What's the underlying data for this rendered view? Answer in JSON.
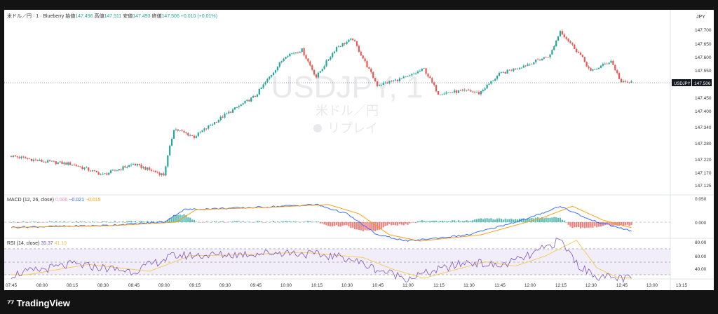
{
  "header": {
    "symbol": "米ドル／円 · 1 · Blueberry",
    "open_label": "始値",
    "open": "147.496",
    "high_label": "高値",
    "high": "147.511",
    "low_label": "安値",
    "low": "147.493",
    "close_label": "終値",
    "close": "147.506",
    "change": "+0.010 (+0.01%)"
  },
  "watermark": {
    "ticker": "USDJPY, 1",
    "name": "米ドル／円",
    "replay": "リプレイ"
  },
  "price_axis": {
    "currency": "JPY",
    "ticks": [
      "147.700",
      "147.650",
      "147.600",
      "147.550",
      "147.506",
      "147.450",
      "147.400",
      "147.340",
      "147.280",
      "147.220",
      "147.170",
      "147.125"
    ],
    "last_label": "USDJPY",
    "last_price": "147.506"
  },
  "macd": {
    "label": "MACD (12, 26, close)",
    "hist": "0.006",
    "macd": "−0.021",
    "signal": "−0.015",
    "ticks": [
      "0.050",
      "0.000"
    ]
  },
  "rsi": {
    "label": "RSI (14, close)",
    "value": "35.37",
    "ma": "41.19",
    "ticks": [
      "80.00",
      "60.00",
      "40.00"
    ]
  },
  "time_axis": [
    "07:45",
    "08:00",
    "08:15",
    "08:30",
    "08:45",
    "09:00",
    "09:15",
    "09:30",
    "09:45",
    "10:00",
    "10:15",
    "10:30",
    "10:45",
    "11:00",
    "11:15",
    "11:30",
    "11:45",
    "12:00",
    "12:15",
    "12:30",
    "12:45",
    "13:00",
    "13:15"
  ],
  "brand": {
    "name": "TradingView"
  },
  "chart_data": {
    "type": "candlestick",
    "symbol": "USDJPY",
    "interval": "1",
    "x_range": [
      "07:45",
      "13:15"
    ],
    "y_range": [
      147.11,
      147.73
    ],
    "price_path": [
      [
        "07:45",
        147.24
      ],
      [
        "08:00",
        147.22
      ],
      [
        "08:15",
        147.21
      ],
      [
        "08:30",
        147.17
      ],
      [
        "08:45",
        147.21
      ],
      [
        "09:00",
        147.17
      ],
      [
        "09:05",
        147.34
      ],
      [
        "09:15",
        147.31
      ],
      [
        "09:30",
        147.39
      ],
      [
        "09:45",
        147.46
      ],
      [
        "10:00",
        147.61
      ],
      [
        "10:08",
        147.63
      ],
      [
        "10:15",
        147.53
      ],
      [
        "10:25",
        147.64
      ],
      [
        "10:33",
        147.67
      ],
      [
        "10:45",
        147.5
      ],
      [
        "11:00",
        147.53
      ],
      [
        "11:08",
        147.56
      ],
      [
        "11:15",
        147.47
      ],
      [
        "11:30",
        147.48
      ],
      [
        "11:35",
        147.47
      ],
      [
        "11:45",
        147.54
      ],
      [
        "12:00",
        147.58
      ],
      [
        "12:10",
        147.61
      ],
      [
        "12:15",
        147.7
      ],
      [
        "12:25",
        147.61
      ],
      [
        "12:30",
        147.55
      ],
      [
        "12:40",
        147.59
      ],
      [
        "12:45",
        147.51
      ],
      [
        "12:50",
        147.51
      ]
    ],
    "macd_path": [
      [
        "07:45",
        -0.012
      ],
      [
        "08:30",
        -0.008
      ],
      [
        "09:00",
        0.0
      ],
      [
        "09:10",
        0.03
      ],
      [
        "09:45",
        0.035
      ],
      [
        "10:15",
        0.042
      ],
      [
        "10:30",
        0.02
      ],
      [
        "10:45",
        -0.03
      ],
      [
        "11:00",
        -0.045
      ],
      [
        "11:30",
        -0.03
      ],
      [
        "12:00",
        0.01
      ],
      [
        "12:15",
        0.038
      ],
      [
        "12:30",
        0.005
      ],
      [
        "12:50",
        -0.021
      ]
    ],
    "rsi_path": [
      [
        "07:45",
        40
      ],
      [
        "08:15",
        52
      ],
      [
        "08:45",
        44
      ],
      [
        "09:05",
        62
      ],
      [
        "09:30",
        63
      ],
      [
        "10:00",
        66
      ],
      [
        "10:30",
        60
      ],
      [
        "10:45",
        46
      ],
      [
        "11:00",
        36
      ],
      [
        "11:30",
        55
      ],
      [
        "11:45",
        50
      ],
      [
        "12:00",
        62
      ],
      [
        "12:15",
        80
      ],
      [
        "12:25",
        48
      ],
      [
        "12:35",
        37
      ],
      [
        "12:50",
        35
      ]
    ]
  }
}
